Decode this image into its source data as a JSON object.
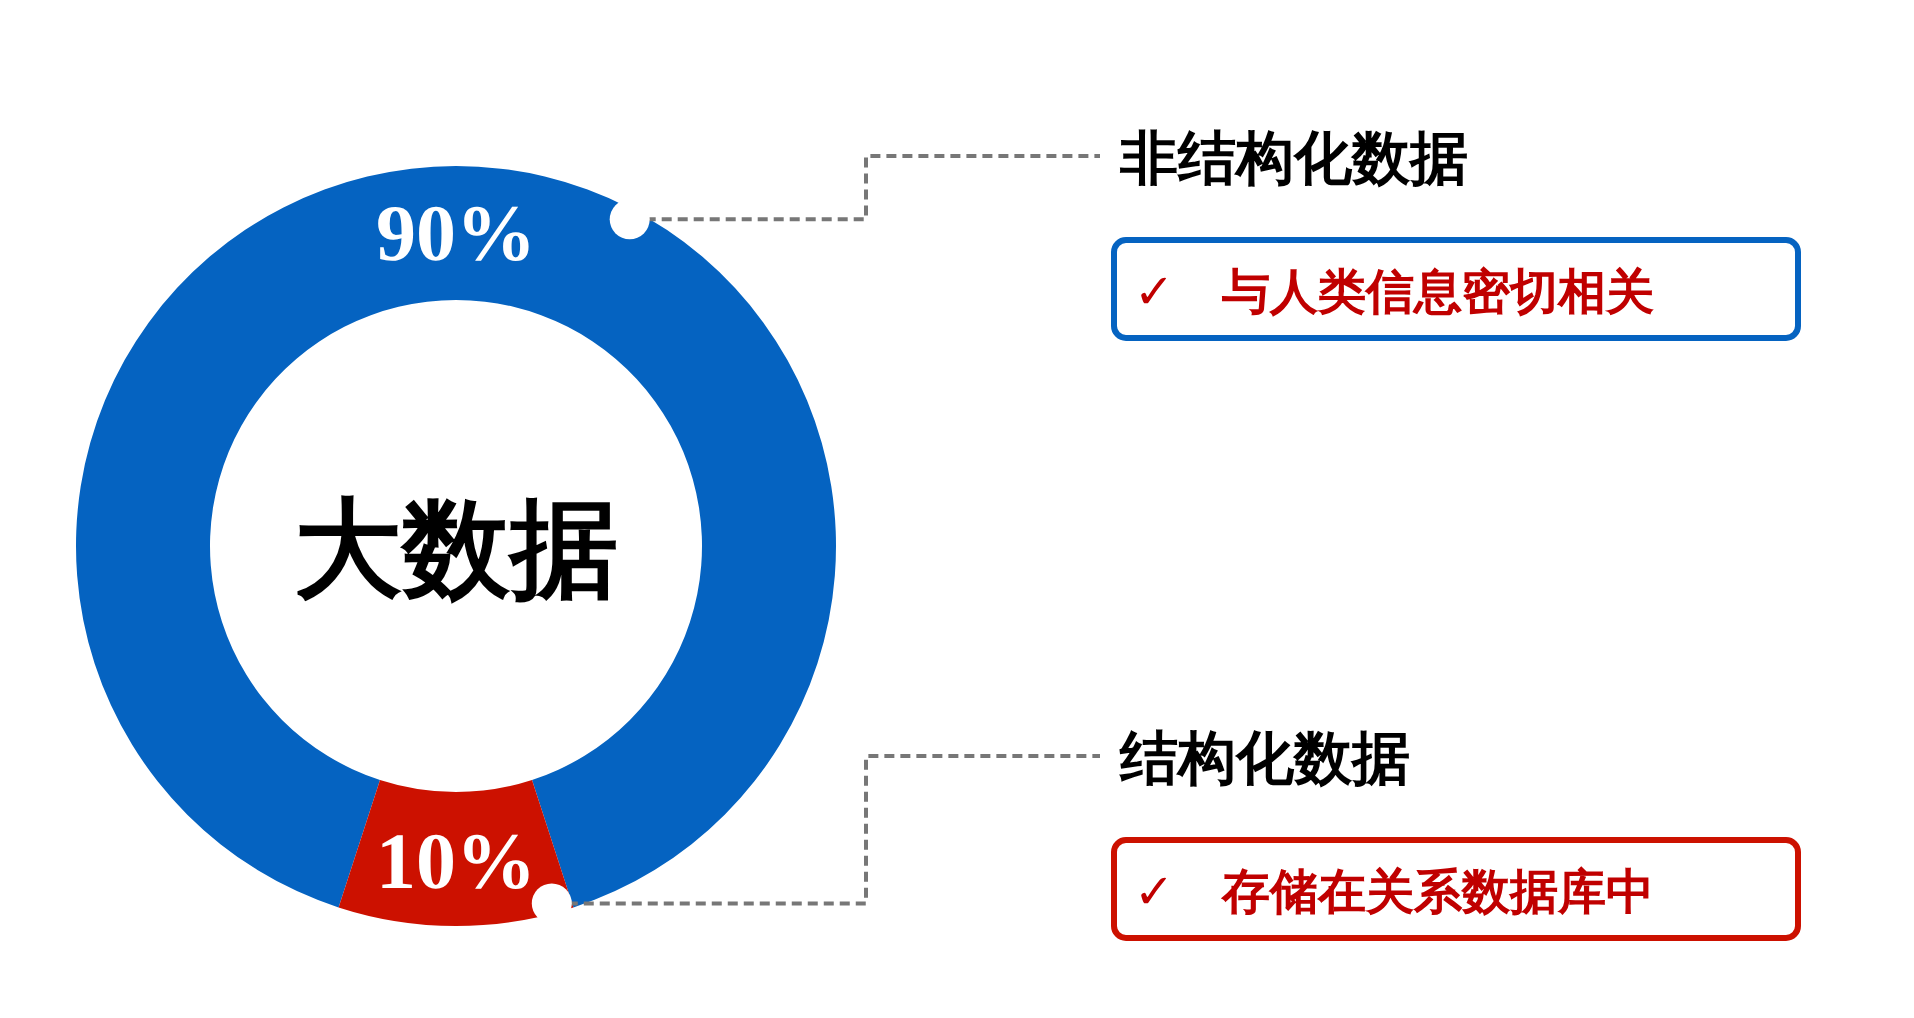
{
  "chart_data": {
    "type": "donut",
    "title": "大数据",
    "categories": [
      "非结构化数据",
      "结构化数据"
    ],
    "values": [
      90,
      10
    ],
    "colors": [
      "#0563c1",
      "#cc1100"
    ],
    "value_labels": [
      "90%",
      "10%"
    ],
    "annotations": [
      "✓　与人类信息密切相关",
      "✓　存储在关系数据库中"
    ]
  }
}
